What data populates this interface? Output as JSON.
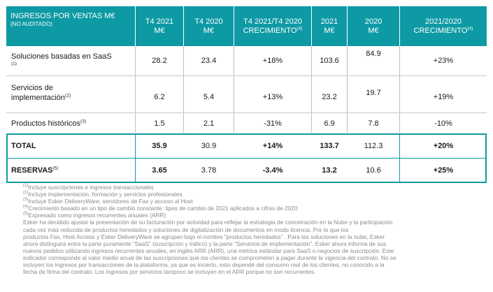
{
  "header": {
    "col1_title": "INGRESOS POR VENTAS M€",
    "col1_subtitle": "(NO AUDITADO)",
    "col2_l1": "T4 2021",
    "col2_l2": "M€",
    "col3_l1": "T4 2020",
    "col3_l2": "M€",
    "col4_l1": "T4 2021/T4 2020",
    "col4_l2": "CRECIMIENTO",
    "col4_sup": "(4)",
    "col5_l1": "2021",
    "col5_l2": "M€",
    "col6_l1": "2020",
    "col6_l2": "M€",
    "col7_l1": "2021/2020",
    "col7_l2": "CRECIMIENTO",
    "col7_sup": "(4)"
  },
  "rows": [
    {
      "label_l1": "Soluciones basadas en SaaS",
      "label_l2": "(1)",
      "sup": "",
      "t4_2021": "28.2",
      "t4_2020": "23.4",
      "t4_growth": "+18%",
      "y2021": "103.6",
      "y2020": "84.9",
      "growth": "+23%"
    },
    {
      "label_l1": "Servicios de",
      "label_l2": "implementación",
      "sup": "(2)",
      "t4_2021": "6.2",
      "t4_2020": "5.4",
      "t4_growth": "+13%",
      "y2021": "23.2",
      "y2020": "19.7",
      "growth": "+19%"
    },
    {
      "label_l1": "Productos históricos",
      "label_l2": "",
      "sup": "(3)",
      "t4_2021": "1.5",
      "t4_2020": "2.1",
      "t4_growth": "-31%",
      "y2021": "6.9",
      "y2020": "7.8",
      "growth": "-10%"
    },
    {
      "label_l1": "TOTAL",
      "label_l2": "",
      "sup": "",
      "t4_2021": "35.9",
      "t4_2020": "30.9",
      "t4_growth": "+14%",
      "y2021": "133.7",
      "y2020": "112.3",
      "growth": "+20%"
    },
    {
      "label_l1": "RESERVAS",
      "label_l2": "",
      "sup": "(5)",
      "t4_2021": "3.65",
      "t4_2020": "3.78",
      "t4_growth": "-3.4%",
      "y2021": "13.2",
      "y2020": "10.6",
      "growth": "+25%"
    }
  ],
  "footnotes": {
    "n1_mark": "(1)",
    "n1": "Incluye suscripciones e ingresos transaccionales",
    "n2_mark": "(2)",
    "n2": "Incluye implementación, formación y servicios profesionales",
    "n3_mark": "(3)",
    "n3": "Incluye Esker DeliveryWare, servidores de Fax y acceso al Host",
    "n4_mark": "(4)",
    "n4": "Crecimiento basado en un tipo de cambio constante: tipos de cambio de 2021 aplicados a cifras de 2020",
    "n5_mark": "(5)",
    "n5": "Expresado como ingresos recurrentes anuales (ARR)",
    "p1": "Esker ha decidido ajustar la presentación de su facturación por actividad para reflejar la estrategia de concetración en la Nube y la participación",
    "p2": "cada vez más reducida de productos heredados y soluciones de digitalización de documentos en modo licencia. Por lo que los",
    "p3": "productos Fax, Host Access y Esker DeliveryWare se agrupan bajo el nombre “productos heredados” . Para las soluciones en la nube, Esker",
    "p4": "ahora distinguirá entre la parte puramente “SaaS” (suscripción y tráfico) y la parte “Servicios de implementación”. Esker ahora informa de sus",
    "p5": "nuevos pedidos utilizando ingresos recurrentes anuales, en inglés ARR (ARR), una métrica estándar para SaaS o negocios de suscripción. Este",
    "p6": "indicador corresponde al valor medio anual de las suscripciones que los clientes se comprometen a pagar durante la vigencia del contrato. No se",
    "p7": "incluyen los ingresos por transacciones de la plataforma, ya que es incierto, esto depende del consumo real de los clientes, no conocido a la",
    "p8": "fecha de firma del contrato. Los ingresos por servicios tampoco se incluyen en el ARR porque no son recurrentes."
  }
}
